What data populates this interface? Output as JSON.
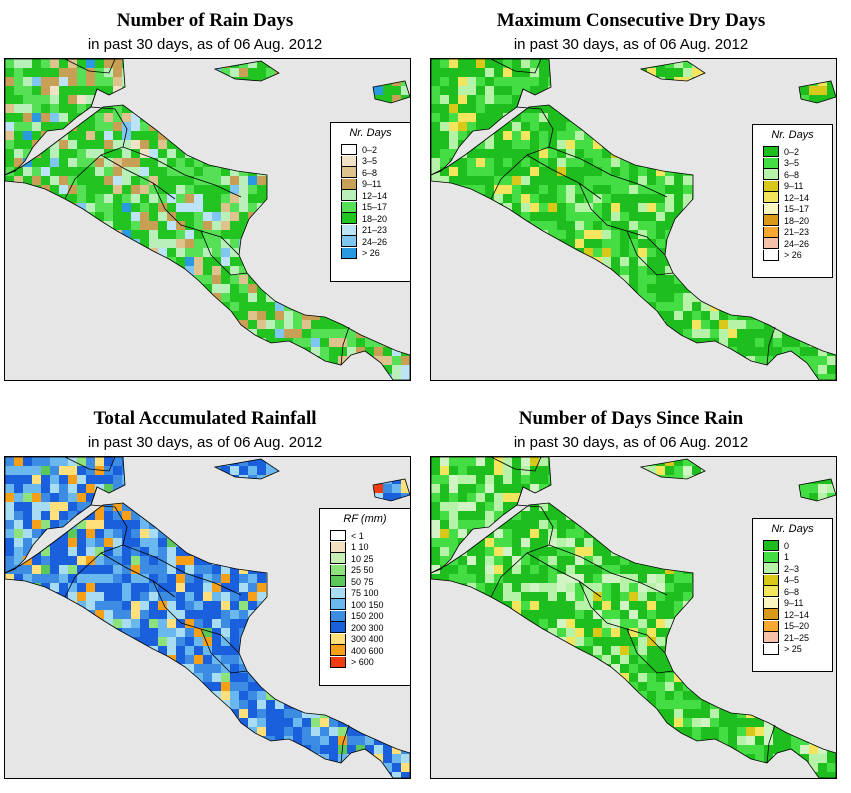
{
  "panels": [
    {
      "id": "rain-days",
      "title": "Number of Rain Days",
      "subtitle": "in past 30 days, as of  06 Aug. 2012",
      "legend_title": "Nr. Days",
      "legend": [
        {
          "label": "0–2",
          "color": "#ffffff"
        },
        {
          "label": "3–5",
          "color": "#f2e3c8"
        },
        {
          "label": "6–8",
          "color": "#dfc38f"
        },
        {
          "label": "9–11",
          "color": "#c8a055"
        },
        {
          "label": "12–14",
          "color": "#b9f0b9"
        },
        {
          "label": "15–17",
          "color": "#55e055"
        },
        {
          "label": "18–20",
          "color": "#22c422"
        },
        {
          "label": "21–23",
          "color": "#bde3f7"
        },
        {
          "label": "24–26",
          "color": "#7fc6f0"
        },
        {
          "label": "> 26",
          "color": "#2a9ae0"
        }
      ],
      "palette": [
        "#22c422",
        "#55e055",
        "#b9f0b9",
        "#c8a055",
        "#dfc38f",
        "#bde3f7",
        "#7fc6f0",
        "#2a9ae0",
        "#f2e3c8"
      ]
    },
    {
      "id": "dry-days",
      "title": "Maximum Consecutive Dry Days",
      "subtitle": "in past 30 days, as of  06 Aug. 2012",
      "legend_title": "Nr. Days",
      "legend": [
        {
          "label": "0–2",
          "color": "#1ebe1e"
        },
        {
          "label": "3–5",
          "color": "#44dd44"
        },
        {
          "label": "6–8",
          "color": "#b6f2a8"
        },
        {
          "label": "9–11",
          "color": "#d8c81a"
        },
        {
          "label": "12–14",
          "color": "#f3e65e"
        },
        {
          "label": "15–17",
          "color": "#fbf6c0"
        },
        {
          "label": "18–20",
          "color": "#d99a1a"
        },
        {
          "label": "21–23",
          "color": "#f7a830"
        },
        {
          "label": "24–26",
          "color": "#f4c2a8"
        },
        {
          "label": "> 26",
          "color": "#ffffff"
        }
      ],
      "palette": [
        "#1ebe1e",
        "#44dd44",
        "#b6f2a8",
        "#f3e65e",
        "#d8c81a"
      ]
    },
    {
      "id": "rainfall",
      "title": "Total Accumulated Rainfall",
      "subtitle": "in past 30 days, as of  06 Aug. 2012",
      "legend_title": "RF (mm)",
      "legend": [
        {
          "label": "< 1",
          "color": "#ffffff"
        },
        {
          "label": "1   10",
          "color": "#f2e0c0"
        },
        {
          "label": "10   25",
          "color": "#c8f0b4"
        },
        {
          "label": "25   50",
          "color": "#8ee27c"
        },
        {
          "label": "50   75",
          "color": "#5cc85a"
        },
        {
          "label": "75   100",
          "color": "#a8dcf2"
        },
        {
          "label": "100   150",
          "color": "#6ab8ee"
        },
        {
          "label": "150   200",
          "color": "#3c8ce4"
        },
        {
          "label": "200   300",
          "color": "#1a5fdc"
        },
        {
          "label": "300   400",
          "color": "#ffe07a"
        },
        {
          "label": "400   600",
          "color": "#f6a018"
        },
        {
          "label": "> 600",
          "color": "#f03c10"
        }
      ],
      "palette": [
        "#1a5fdc",
        "#3c8ce4",
        "#6ab8ee",
        "#a8dcf2",
        "#f6a018",
        "#ffe07a",
        "#8ee27c",
        "#5cc85a",
        "#f03c10"
      ]
    },
    {
      "id": "since-rain",
      "title": "Number of Days Since Rain",
      "subtitle": "in past 30 days, as of  06 Aug. 2012",
      "legend_title": "Nr. Days",
      "legend": [
        {
          "label": "0",
          "color": "#1ebe1e"
        },
        {
          "label": "1",
          "color": "#44dd44"
        },
        {
          "label": "2–3",
          "color": "#b6f2a8"
        },
        {
          "label": "4–5",
          "color": "#d8c81a"
        },
        {
          "label": "6–8",
          "color": "#f3e65e"
        },
        {
          "label": "9–11",
          "color": "#fbf6c0"
        },
        {
          "label": "12–14",
          "color": "#d99a1a"
        },
        {
          "label": "15–20",
          "color": "#f7a830"
        },
        {
          "label": "21–25",
          "color": "#f4c2a8"
        },
        {
          "label": "> 25",
          "color": "#ffffff"
        }
      ],
      "palette": [
        "#1ebe1e",
        "#44dd44",
        "#b6f2a8",
        "#d0f4c4",
        "#f3e65e",
        "#d8c81a"
      ]
    }
  ]
}
